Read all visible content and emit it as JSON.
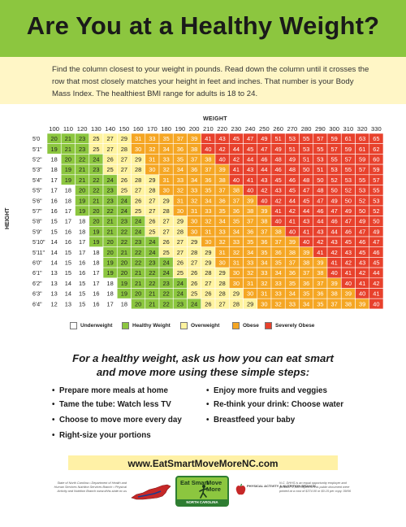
{
  "header": {
    "title": "Are You at a Healthy Weight?",
    "band_color": "#8cc63f"
  },
  "intro": {
    "text": "Find the column closest to your weight in pounds. Read down the column until it crosses the row that most closely matches your height in feet and inches. That number is your Body Mass Index. The healthiest BMI range for adults is 18 to 24."
  },
  "chart": {
    "weight_label": "WEIGHT",
    "height_label": "HEIGHT",
    "weights": [
      100,
      110,
      120,
      130,
      140,
      150,
      160,
      170,
      180,
      190,
      200,
      210,
      220,
      230,
      240,
      250,
      260,
      270,
      280,
      290,
      300,
      310,
      320,
      330
    ],
    "rows": [
      {
        "height": "5'0",
        "values": [
          20,
          21,
          23,
          25,
          27,
          29,
          31,
          33,
          35,
          37,
          39,
          41,
          43,
          45,
          47,
          49,
          51,
          53,
          55,
          57,
          59,
          61,
          63,
          65
        ]
      },
      {
        "height": "5'1\"",
        "values": [
          19,
          21,
          23,
          25,
          27,
          28,
          30,
          32,
          34,
          36,
          38,
          40,
          42,
          44,
          45,
          47,
          49,
          51,
          53,
          55,
          57,
          59,
          61,
          62
        ]
      },
      {
        "height": "5'2\"",
        "values": [
          18,
          20,
          22,
          24,
          26,
          27,
          29,
          31,
          33,
          35,
          37,
          38,
          40,
          42,
          44,
          46,
          48,
          49,
          51,
          53,
          55,
          57,
          59,
          60
        ]
      },
      {
        "height": "5'3\"",
        "values": [
          18,
          19,
          21,
          23,
          25,
          27,
          28,
          30,
          32,
          34,
          36,
          37,
          39,
          41,
          43,
          44,
          46,
          48,
          50,
          51,
          53,
          55,
          57,
          59
        ]
      },
      {
        "height": "5'4\"",
        "values": [
          17,
          19,
          21,
          22,
          24,
          26,
          28,
          29,
          31,
          33,
          34,
          36,
          38,
          40,
          41,
          43,
          45,
          46,
          48,
          50,
          52,
          53,
          55,
          57
        ]
      },
      {
        "height": "5'5\"",
        "values": [
          17,
          18,
          20,
          22,
          23,
          25,
          27,
          28,
          30,
          32,
          33,
          35,
          37,
          38,
          40,
          42,
          43,
          45,
          47,
          48,
          50,
          52,
          53,
          55
        ]
      },
      {
        "height": "5'6\"",
        "values": [
          16,
          18,
          19,
          21,
          23,
          24,
          26,
          27,
          29,
          31,
          32,
          34,
          36,
          37,
          39,
          40,
          42,
          44,
          45,
          47,
          49,
          50,
          52,
          53
        ]
      },
      {
        "height": "5'7\"",
        "values": [
          16,
          17,
          19,
          20,
          22,
          24,
          25,
          27,
          28,
          30,
          31,
          33,
          35,
          36,
          38,
          39,
          41,
          42,
          44,
          46,
          47,
          49,
          50,
          52
        ]
      },
      {
        "height": "5'8\"",
        "values": [
          15,
          17,
          18,
          20,
          21,
          23,
          24,
          26,
          27,
          29,
          30,
          32,
          34,
          35,
          37,
          38,
          40,
          41,
          43,
          44,
          46,
          47,
          49,
          50
        ]
      },
      {
        "height": "5'9\"",
        "values": [
          15,
          16,
          18,
          19,
          21,
          22,
          24,
          25,
          27,
          28,
          30,
          31,
          33,
          34,
          36,
          37,
          38,
          40,
          41,
          43,
          44,
          46,
          47,
          49
        ]
      },
      {
        "height": "5'10\"",
        "values": [
          14,
          16,
          17,
          19,
          20,
          22,
          23,
          24,
          26,
          27,
          29,
          30,
          32,
          33,
          35,
          36,
          37,
          39,
          40,
          42,
          43,
          45,
          46,
          47
        ]
      },
      {
        "height": "5'11\"",
        "values": [
          14,
          15,
          17,
          18,
          20,
          21,
          22,
          24,
          25,
          27,
          28,
          29,
          31,
          32,
          34,
          35,
          36,
          38,
          39,
          41,
          42,
          43,
          45,
          46
        ]
      },
      {
        "height": "6'0\"",
        "values": [
          14,
          15,
          16,
          18,
          19,
          20,
          22,
          23,
          24,
          26,
          27,
          29,
          30,
          31,
          33,
          34,
          35,
          37,
          38,
          39,
          41,
          42,
          43,
          45
        ]
      },
      {
        "height": "6'1\"",
        "values": [
          13,
          15,
          16,
          17,
          19,
          20,
          21,
          22,
          24,
          25,
          26,
          28,
          29,
          30,
          32,
          33,
          34,
          36,
          37,
          38,
          40,
          41,
          42,
          44
        ]
      },
      {
        "height": "6'2\"",
        "values": [
          13,
          14,
          15,
          17,
          18,
          19,
          21,
          22,
          23,
          24,
          26,
          27,
          28,
          30,
          31,
          32,
          33,
          35,
          36,
          37,
          39,
          40,
          41,
          42
        ]
      },
      {
        "height": "6'3\"",
        "values": [
          13,
          14,
          15,
          16,
          18,
          19,
          20,
          21,
          22,
          24,
          25,
          26,
          28,
          29,
          30,
          31,
          33,
          34,
          35,
          36,
          38,
          39,
          40,
          41
        ]
      },
      {
        "height": "6'4\"",
        "values": [
          12,
          13,
          15,
          16,
          17,
          18,
          20,
          21,
          22,
          23,
          24,
          26,
          27,
          28,
          29,
          30,
          32,
          33,
          34,
          35,
          37,
          38,
          39,
          40
        ]
      }
    ],
    "colors": {
      "underweight": "#ffffff",
      "healthy": "#8cc63f",
      "overweight": "#fff3a0",
      "obese": "#f5a623",
      "severely_obese": "#e8412c"
    }
  },
  "legend": {
    "underweight": "Underweight",
    "healthy": "Healthy Weight",
    "overweight": "Overweight",
    "obese": "Obese",
    "severely_obese": "Severely Obese"
  },
  "cta": {
    "line1": "For a healthy weight, ask us how you can eat smart",
    "line2": "and move more using these simple steps:"
  },
  "steps_left": [
    "Prepare more meals at home",
    "Tame the tube: Watch less TV",
    "Choose to move more every day",
    "Right-size your portions"
  ],
  "steps_right": [
    "Enjoy more fruits and veggies",
    "Re-think your drink: Choose water",
    "Breastfeed your baby"
  ],
  "website": "www.EatSmartMoveMoreNC.com",
  "footer": {
    "left_text": "State of North Carolina • Department of Health and Human Services Nutrition Services Branch • Physical Activity and Nutrition Branch www.dhhs.state.nc.us",
    "logo_left": "Eat Smart",
    "logo_right": "Move More",
    "logo_bottom": "NORTH CAROLINA",
    "branch_logo": "PHYSICAL ACTIVITY & NUTRITION BRANCH",
    "right_text": "N.C. DHHS is an equal opportunity employer and provider. 2,500 copies of this public document were printed at a cost of $374.00 or $0.15 per copy. 09/06"
  }
}
